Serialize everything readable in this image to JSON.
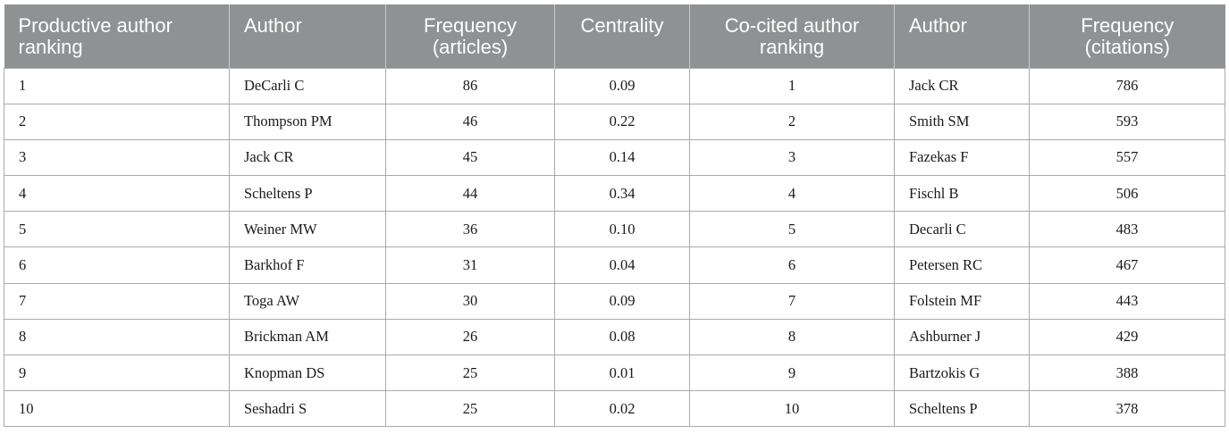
{
  "table": {
    "headers": [
      "Productive author ranking",
      "Author",
      "Frequency (articles)",
      "Centrality",
      "Co-cited author ranking",
      "Author",
      "Frequency (citations)"
    ],
    "rows": [
      [
        "1",
        "DeCarli C",
        "86",
        "0.09",
        "1",
        "Jack CR",
        "786"
      ],
      [
        "2",
        "Thompson PM",
        "46",
        "0.22",
        "2",
        "Smith SM",
        "593"
      ],
      [
        "3",
        "Jack CR",
        "45",
        "0.14",
        "3",
        "Fazekas F",
        "557"
      ],
      [
        "4",
        "Scheltens P",
        "44",
        "0.34",
        "4",
        "Fischl B",
        "506"
      ],
      [
        "5",
        "Weiner MW",
        "36",
        "0.10",
        "5",
        "Decarli C",
        "483"
      ],
      [
        "6",
        "Barkhof F",
        "31",
        "0.04",
        "6",
        "Petersen RC",
        "467"
      ],
      [
        "7",
        "Toga AW",
        "30",
        "0.09",
        "7",
        "Folstein MF",
        "443"
      ],
      [
        "8",
        "Brickman AM",
        "26",
        "0.08",
        "8",
        "Ashburner J",
        "429"
      ],
      [
        "9",
        "Knopman DS",
        "25",
        "0.01",
        "9",
        "Bartzokis G",
        "388"
      ],
      [
        "10",
        "Seshadri S",
        "25",
        "0.02",
        "10",
        "Scheltens P",
        "378"
      ]
    ]
  },
  "colors": {
    "header_background": "#8f9192",
    "header_text": "#ffffff",
    "border": "#a8aaab"
  }
}
